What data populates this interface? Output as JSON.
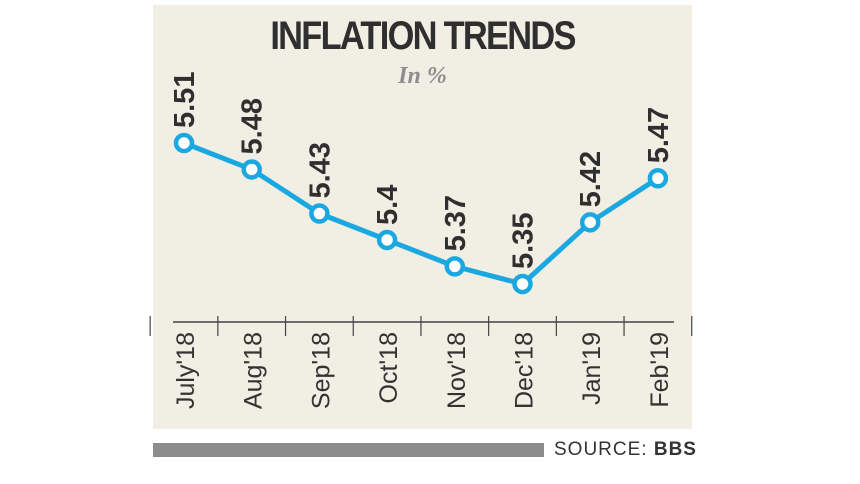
{
  "title": "INFLATION TRENDS",
  "subtitle": "In %",
  "source": {
    "label": "SOURCE:",
    "name": "BBS"
  },
  "colors": {
    "line": "#1ba8e0",
    "panel": "#f1eee4",
    "text": "#2f2f2f",
    "axis": "#444444"
  },
  "chart_data": {
    "type": "line",
    "title": "INFLATION TRENDS",
    "subtitle": "In %",
    "categories": [
      "July'18",
      "Aug'18",
      "Sep'18",
      "Oct'18",
      "Nov'18",
      "Dec'18",
      "Jan'19",
      "Feb'19"
    ],
    "values": [
      5.51,
      5.48,
      5.43,
      5.4,
      5.37,
      5.35,
      5.42,
      5.47
    ],
    "data_labels": [
      "5.51",
      "5.48",
      "5.43",
      "5.4",
      "5.37",
      "5.35",
      "5.42",
      "5.47"
    ],
    "xlabel": "",
    "ylabel": "",
    "grid": false,
    "legend": "none"
  }
}
